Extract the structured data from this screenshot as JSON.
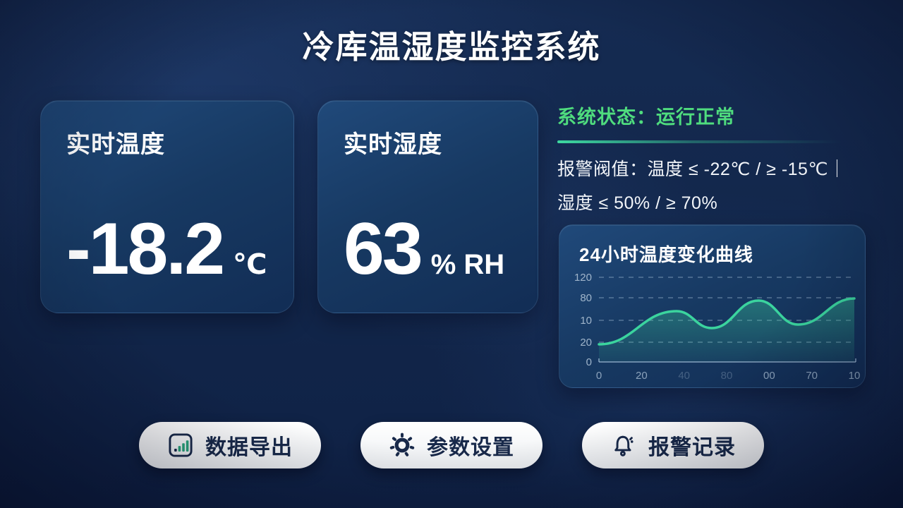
{
  "title": "冷库温湿度监控系统",
  "temperature_card": {
    "label": "实时温度",
    "value": "-18.2",
    "unit": "℃"
  },
  "humidity_card": {
    "label": "实时湿度",
    "value": "63",
    "unit": "% RH"
  },
  "status": {
    "label": "系统状态：",
    "value": "运行正常",
    "threshold_line1": "报警阀值：温度 ≤ -22℃ / ≥ -15℃｜",
    "threshold_line2": "湿度 ≤ 50% / ≥ 70%"
  },
  "chart_data": {
    "type": "area",
    "title": "24小时温度变化曲线",
    "y_axis": {
      "tick_labels": [
        "120",
        "80",
        "10",
        "20",
        "0"
      ],
      "range": [
        0,
        120
      ]
    },
    "x_axis": {
      "tick_labels": [
        "0",
        "20",
        "40",
        "80",
        "00",
        "70",
        "10"
      ],
      "faded_tick_indexes": [
        2,
        3
      ],
      "range": [
        0,
        24
      ]
    },
    "points": [
      {
        "x": 0,
        "v": 25
      },
      {
        "x": 7.3,
        "v": 72
      },
      {
        "x": 10.6,
        "v": 48
      },
      {
        "x": 15,
        "v": 87
      },
      {
        "x": 18.7,
        "v": 53
      },
      {
        "x": 24,
        "v": 90
      }
    ],
    "grid": "dashed-horizontal",
    "legend": "none",
    "line_color": "#3bd49e",
    "fill_color_top": "rgba(59,212,158,0.38)",
    "fill_color_bottom": "rgba(59,212,158,0.08)"
  },
  "buttons": [
    {
      "label": "数据导出",
      "icon": "bar-chart-icon"
    },
    {
      "label": "参数设置",
      "icon": "gear-icon"
    },
    {
      "label": "报警记录",
      "icon": "bell-icon"
    }
  ],
  "colors": {
    "background": "#12264a",
    "card": "#173962",
    "status_green": "#4fdc7e",
    "accent_teal": "#3bd49e",
    "button_bg": "#f3f5f7",
    "button_text": "#18294a",
    "tick_label": "#9fb4ca"
  }
}
